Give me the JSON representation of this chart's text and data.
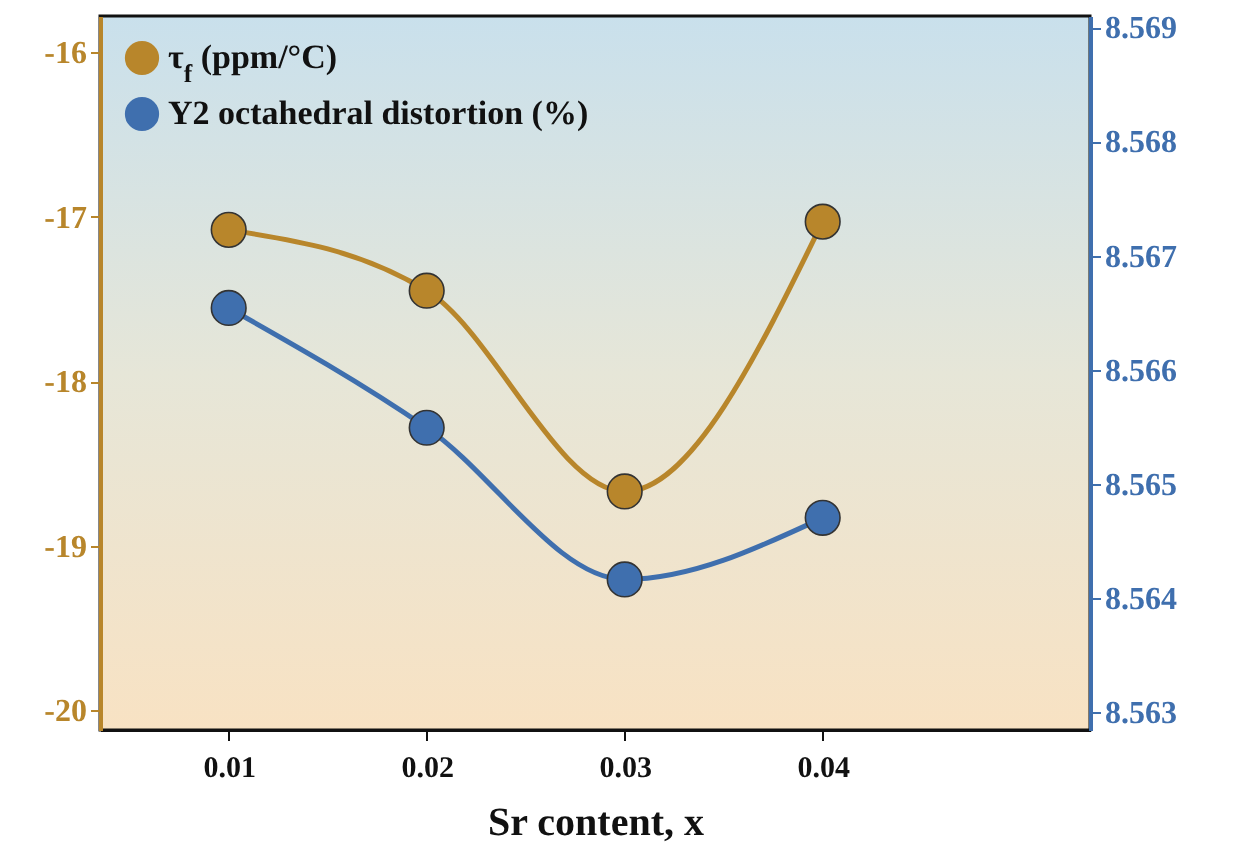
{
  "chart_data": {
    "type": "line",
    "xlabel": "Sr content, x",
    "x": [
      0.01,
      0.02,
      0.03,
      0.04
    ],
    "xlim": [
      0.0035,
      0.0535
    ],
    "xticks": [
      0.01,
      0.02,
      0.03,
      0.04
    ],
    "ylim": [
      -20.12,
      -15.78
    ],
    "yticks": [
      -20,
      -19,
      -18,
      -17,
      -16
    ],
    "y2lim": [
      8.56284,
      8.5691
    ],
    "y2ticks": [
      8.563,
      8.564,
      8.565,
      8.566,
      8.567,
      8.568,
      8.569
    ],
    "series": [
      {
        "name": "τ$_{f}$ (ppm/°C)",
        "color": "#b8862b",
        "values": [
          -17.08,
          -17.45,
          -18.67,
          -17.03
        ]
      },
      {
        "name": "Y2  octahedral distortion (%)",
        "color": "#3f6fae",
        "axis": "y2",
        "values": [
          8.56654,
          8.56549,
          8.56416,
          8.5647
        ]
      }
    ],
    "marker": "circle",
    "line_style": "solid",
    "grid": false,
    "legend": "top left"
  }
}
